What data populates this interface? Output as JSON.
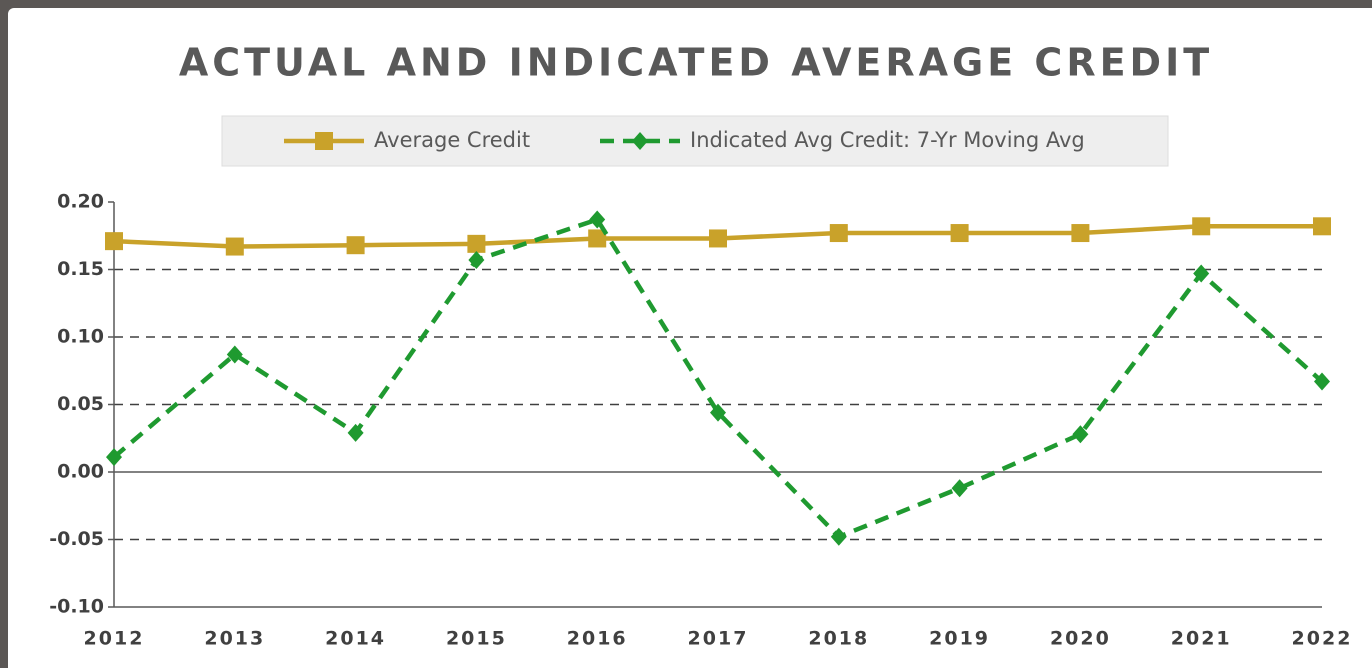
{
  "chart_data": {
    "type": "line",
    "title": "ACTUAL AND INDICATED AVERAGE CREDIT",
    "categories": [
      "2012",
      "2013",
      "2014",
      "2015",
      "2016",
      "2017",
      "2018",
      "2019",
      "2020",
      "2021",
      "2022"
    ],
    "series": [
      {
        "name": "Average Credit",
        "color": "#c9a22a",
        "marker": "square",
        "dash": false,
        "values": [
          0.171,
          0.167,
          0.168,
          0.169,
          0.173,
          0.173,
          0.177,
          0.177,
          0.177,
          0.182,
          0.182
        ]
      },
      {
        "name": "Indicated Avg Credit: 7-Yr Moving Avg",
        "color": "#1f9a30",
        "marker": "diamond",
        "dash": true,
        "values": [
          0.011,
          0.087,
          0.029,
          0.157,
          0.187,
          0.044,
          -0.048,
          -0.012,
          0.028,
          0.147,
          0.067
        ]
      }
    ],
    "ylim": [
      -0.1,
      0.2
    ],
    "yticks": [
      {
        "value": -0.1,
        "label": "-0.10"
      },
      {
        "value": -0.05,
        "label": "-0.05"
      },
      {
        "value": 0,
        "label": "0.00"
      },
      {
        "value": 0.05,
        "label": "0.05"
      },
      {
        "value": 0.1,
        "label": "0.10"
      },
      {
        "value": 0.15,
        "label": "0.15"
      },
      {
        "value": 0.2,
        "label": "0.20"
      }
    ],
    "grid": true,
    "legend": "top"
  }
}
